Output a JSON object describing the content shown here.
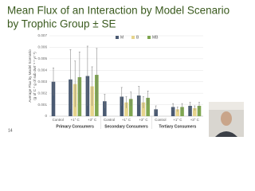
{
  "title_lines": [
    "Mean Flux of an Interaction by Model Scenario",
    "by Trophic Group ± SE"
  ],
  "page_number": "14",
  "chart_data": {
    "type": "grouped-bar",
    "y_label_lines": [
      "Average Flux by Model Scenario",
      "(g of C * g of sub dwt⁻¹ * yr⁻¹)"
    ],
    "categories": [
      "Control",
      "+1° C",
      "+3° C",
      "Control",
      "+1° C",
      "+3° C",
      "Control",
      "+1° C",
      "+3° C"
    ],
    "groups": [
      "Primary Consumers",
      "Secondary Consumers",
      "Tertiary Consumers"
    ],
    "series": [
      {
        "name": "M",
        "color": "#4a5a72",
        "values": [
          0.003,
          0.0032,
          0.0035,
          0.0013,
          0.0017,
          0.0018,
          0.0006,
          0.0008,
          0.0009
        ],
        "errors": [
          0.0012,
          0.0026,
          0.0026,
          0.0006,
          0.0008,
          0.0008,
          0.0003,
          0.0003,
          0.0003
        ]
      },
      {
        "name": "B",
        "color": "#e6d48c",
        "values": [
          null,
          0.0028,
          0.0026,
          null,
          0.0012,
          0.0012,
          null,
          0.0006,
          0.0007
        ],
        "errors": [
          null,
          0.002,
          0.0017,
          null,
          0.0005,
          0.0005,
          null,
          0.0002,
          0.0002
        ]
      },
      {
        "name": "MB",
        "color": "#7fa650",
        "values": [
          null,
          0.0034,
          0.0036,
          null,
          0.0015,
          0.0016,
          null,
          0.0008,
          0.0009
        ],
        "errors": [
          null,
          0.0022,
          0.0023,
          null,
          0.0006,
          0.0006,
          null,
          0.0003,
          0.0003
        ]
      }
    ],
    "ylim": [
      0,
      0.007
    ],
    "yticks": [
      0,
      0.001,
      0.002,
      0.003,
      0.004,
      0.005,
      0.006,
      0.007
    ],
    "grid": true
  }
}
